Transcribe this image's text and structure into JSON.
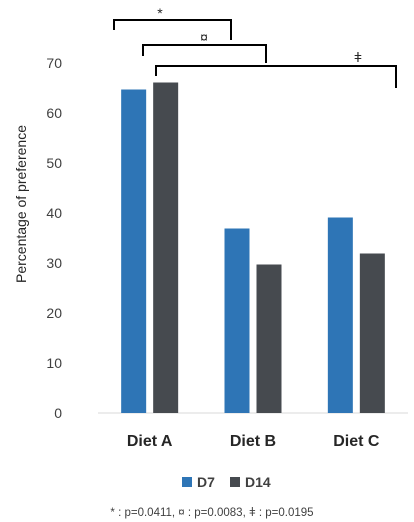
{
  "chart_data": {
    "type": "bar",
    "categories": [
      "Diet A",
      "Diet B",
      "Diet C"
    ],
    "series": [
      {
        "name": "D7",
        "values": [
          64.7,
          36.9,
          39.1
        ],
        "color": "#2e75b6"
      },
      {
        "name": "D14",
        "values": [
          66.1,
          29.7,
          31.9
        ],
        "color": "#464a4f"
      }
    ],
    "ylabel": "Percentage of preference",
    "xlabel": "",
    "ylim": [
      0,
      70
    ],
    "yticks": [
      0,
      10,
      20,
      30,
      40,
      50,
      60,
      70
    ],
    "grid": false,
    "legend_position": "bottom",
    "significance": [
      {
        "symbol": "*"
      },
      {
        "symbol": "¤"
      },
      {
        "symbol": "ǂ"
      }
    ],
    "footnote": "* : p=0.0411, ¤ : p=0.0083, ǂ : p=0.0195"
  }
}
